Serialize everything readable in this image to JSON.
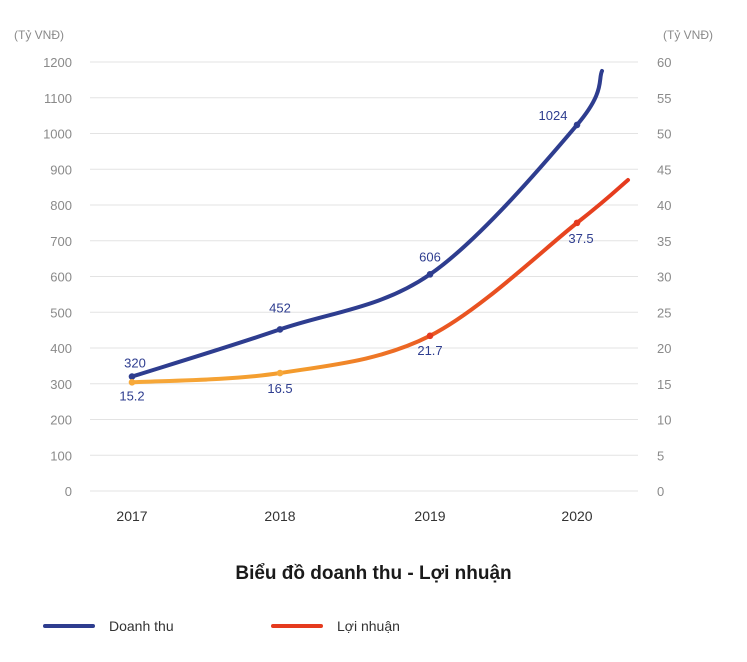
{
  "chart_data": {
    "type": "line",
    "title": "Biểu đồ doanh thu - Lợi nhuận",
    "left_unit": "(Tỷ VNĐ)",
    "right_unit": "(Tỷ VNĐ)",
    "categories": [
      "2017",
      "2018",
      "2019",
      "2020"
    ],
    "left_axis": {
      "min": 0,
      "max": 1200,
      "step": 100,
      "ticks": [
        "0",
        "100",
        "200",
        "300",
        "400",
        "500",
        "600",
        "700",
        "800",
        "900",
        "1000",
        "1100",
        "1200"
      ]
    },
    "right_axis": {
      "min": 0,
      "max": 60,
      "step": 5,
      "ticks": [
        "0",
        "5",
        "10",
        "15",
        "20",
        "25",
        "30",
        "35",
        "40",
        "45",
        "50",
        "55",
        "60"
      ]
    },
    "grid": true,
    "legend_position": "bottom-left",
    "series": [
      {
        "name": "Doanh thu",
        "axis": "left",
        "color": "#2e3d8f",
        "values": [
          320,
          452,
          606,
          1024
        ],
        "labels": [
          "320",
          "452",
          "606",
          "1024"
        ],
        "end_value": 1175
      },
      {
        "name": "Lợi nhuận",
        "axis": "right",
        "color": "#e53a1e",
        "color_start": "#f7a93a",
        "values": [
          15.2,
          16.5,
          21.7,
          37.5
        ],
        "labels": [
          "15.2",
          "16.5",
          "21.7",
          "37.5"
        ],
        "end_value": 43.5
      }
    ]
  }
}
